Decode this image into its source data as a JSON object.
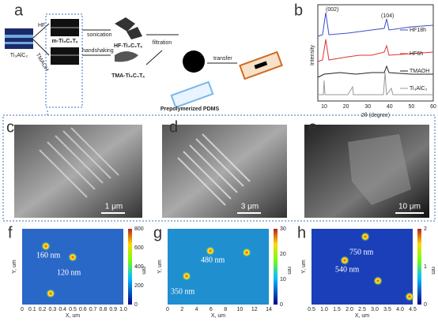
{
  "panels": {
    "a": {
      "label": "a",
      "precursor": "Ti₃AlC₂",
      "routes": [
        "HF",
        "TMAOH"
      ],
      "intermediate": "m-Ti₃C₂Tₓ",
      "steps": [
        "sonication",
        "handshaking"
      ],
      "products": [
        "HF-Ti₃C₂Tₓ",
        "TMA-Ti₃C₂Tₓ"
      ],
      "filtration": "filtration",
      "transfer": "transfer",
      "substrate": "Prepolymerized PDMS"
    },
    "b": {
      "label": "b",
      "peaks": [
        "(002)",
        "(104)"
      ],
      "legend": [
        "HF18h",
        "HF6h",
        "TMAOH",
        "Ti₃AlC₂"
      ],
      "y_label": "Intensity",
      "x_label": "2θ (degree)",
      "x_ticks": [
        "10",
        "20",
        "30",
        "40",
        "50",
        "60"
      ]
    },
    "c": {
      "label": "c",
      "scale_bar": "1 μm"
    },
    "d": {
      "label": "d",
      "scale_bar": "3 μm"
    },
    "e": {
      "label": "e",
      "scale_bar": "10 μm"
    },
    "f": {
      "label": "f",
      "sizes": [
        "160 nm",
        "120 nm"
      ],
      "x_label": "X, um",
      "y_label": "Y, um",
      "x_ticks": [
        "0",
        "0.1",
        "0.2",
        "0.3",
        "0.4",
        "0.5",
        "0.6",
        "0.7",
        "0.8",
        "0.9",
        "1.0"
      ],
      "colorbar_ticks": [
        "0",
        "200",
        "400",
        "600",
        "800"
      ],
      "colorbar_unit": "nm"
    },
    "g": {
      "label": "g",
      "sizes": [
        "480 nm",
        "350 nm"
      ],
      "x_label": "X, um",
      "y_label": "Y, um",
      "x_ticks": [
        "0",
        "2",
        "4",
        "6",
        "8",
        "10",
        "12",
        "14"
      ],
      "colorbar_ticks": [
        "0",
        "10",
        "20",
        "30"
      ],
      "colorbar_unit": "nm"
    },
    "h": {
      "label": "h",
      "sizes": [
        "540 nm",
        "750 nm"
      ],
      "x_label": "X, um",
      "y_label": "Y, um",
      "x_ticks": [
        "0.5",
        "1.0",
        "1.5",
        "2.0",
        "2.5",
        "3.0",
        "3.5",
        "4.0",
        "4.5"
      ],
      "colorbar_ticks": [
        "0",
        "1",
        "2"
      ],
      "colorbar_unit": "nm"
    }
  }
}
